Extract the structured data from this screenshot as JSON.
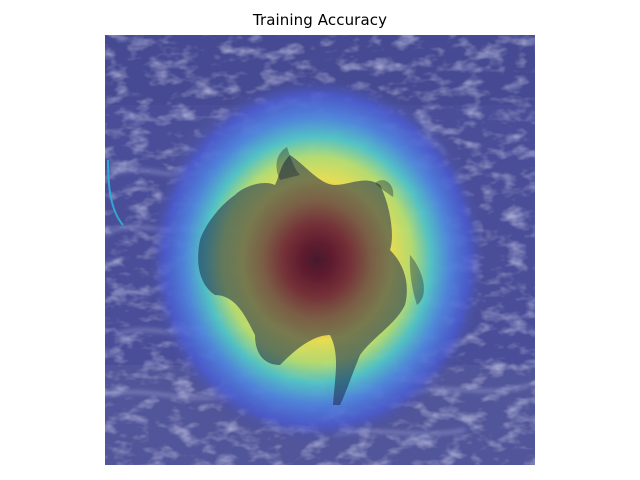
{
  "title": "Training Accuracy",
  "image": {
    "description_icon": "gradcam-heatmap-overlay-icon",
    "colormap": "jet",
    "overlay_colors": {
      "low": "#4a4e9c",
      "mid_cool": "#3fc4d8",
      "mid_warm": "#f2e34a",
      "high": "#8b0000"
    }
  }
}
